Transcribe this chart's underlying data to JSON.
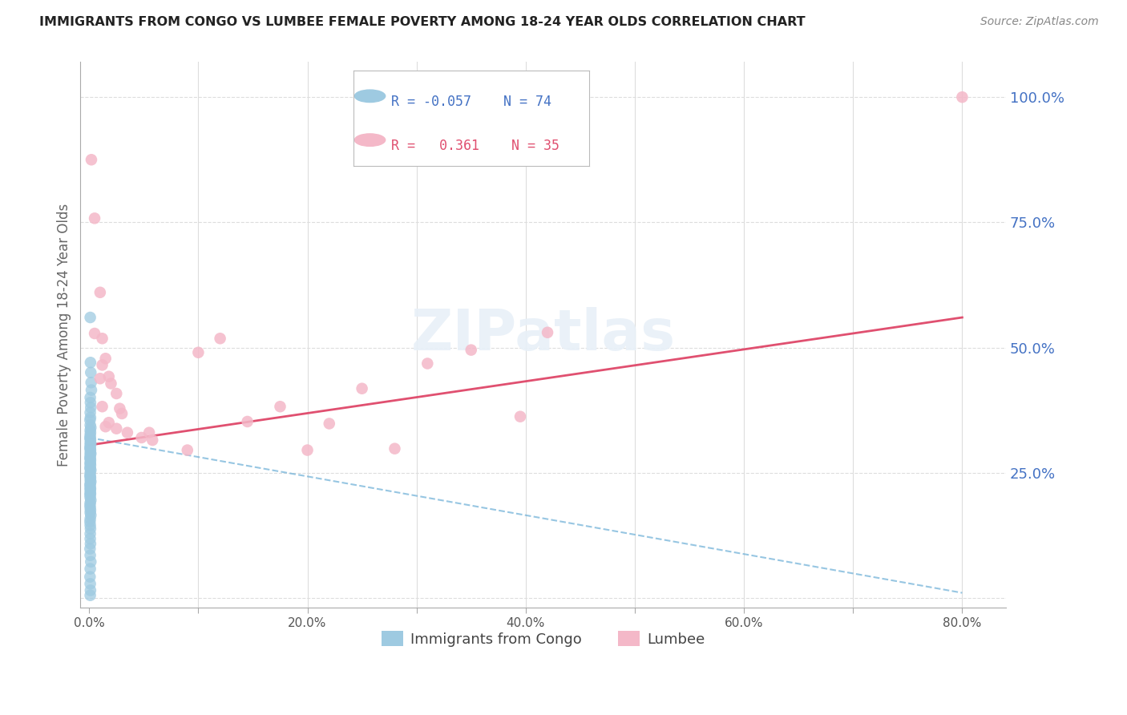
{
  "title": "IMMIGRANTS FROM CONGO VS LUMBEE FEMALE POVERTY AMONG 18-24 YEAR OLDS CORRELATION CHART",
  "source": "Source: ZipAtlas.com",
  "ylabel": "Female Poverty Among 18-24 Year Olds",
  "xlim": [
    -0.008,
    0.84
  ],
  "ylim": [
    -0.02,
    1.07
  ],
  "right_yticks": [
    0.0,
    0.25,
    0.5,
    0.75,
    1.0
  ],
  "right_yticklabels": [
    "",
    "25.0%",
    "50.0%",
    "75.0%",
    "100.0%"
  ],
  "xtick_vals": [
    0.0,
    0.1,
    0.2,
    0.3,
    0.4,
    0.5,
    0.6,
    0.7,
    0.8
  ],
  "xtick_labels": [
    "0.0%",
    "",
    "20.0%",
    "",
    "40.0%",
    "",
    "60.0%",
    "",
    "80.0%"
  ],
  "grid_yticks": [
    0.0,
    0.25,
    0.5,
    0.75,
    1.0
  ],
  "grid_xticks": [
    0.1,
    0.2,
    0.3,
    0.4,
    0.5,
    0.6,
    0.7,
    0.8
  ],
  "grid_color": "#dddddd",
  "background_color": "#ffffff",
  "congo_color": "#9ecae1",
  "lumbee_color": "#f4b8c8",
  "congo_line_color": "#6baed6",
  "lumbee_line_color": "#e05070",
  "legend_R_congo": "-0.057",
  "legend_N_congo": "74",
  "legend_R_lumbee": "0.361",
  "legend_N_lumbee": "35",
  "congo_label": "Immigrants from Congo",
  "lumbee_label": "Lumbee",
  "right_label_color": "#4472c4",
  "title_color": "#222222",
  "source_color": "#888888",
  "congo_points_x": [
    0.001,
    0.0012,
    0.0015,
    0.0018,
    0.002,
    0.001,
    0.0012,
    0.0015,
    0.001,
    0.0012,
    0.0008,
    0.001,
    0.0015,
    0.001,
    0.0012,
    0.001,
    0.0008,
    0.001,
    0.0012,
    0.001,
    0.0015,
    0.001,
    0.0008,
    0.001,
    0.0012,
    0.001,
    0.0015,
    0.001,
    0.0008,
    0.001,
    0.0012,
    0.001,
    0.001,
    0.0012,
    0.0008,
    0.001,
    0.0015,
    0.001,
    0.0008,
    0.001,
    0.0012,
    0.001,
    0.0015,
    0.001,
    0.0008,
    0.001,
    0.0012,
    0.001,
    0.001,
    0.0012,
    0.0008,
    0.001,
    0.0015,
    0.001,
    0.0008,
    0.001,
    0.0012,
    0.001,
    0.0015,
    0.001,
    0.0008,
    0.001,
    0.0012,
    0.001,
    0.001,
    0.0012,
    0.0008,
    0.001,
    0.0015,
    0.001,
    0.0008,
    0.001,
    0.0012,
    0.001
  ],
  "congo_points_y": [
    0.56,
    0.47,
    0.45,
    0.43,
    0.415,
    0.4,
    0.39,
    0.38,
    0.37,
    0.36,
    0.355,
    0.345,
    0.34,
    0.335,
    0.33,
    0.325,
    0.32,
    0.318,
    0.315,
    0.31,
    0.308,
    0.305,
    0.3,
    0.298,
    0.295,
    0.29,
    0.288,
    0.285,
    0.28,
    0.278,
    0.275,
    0.27,
    0.268,
    0.265,
    0.26,
    0.258,
    0.255,
    0.25,
    0.245,
    0.242,
    0.24,
    0.235,
    0.232,
    0.228,
    0.225,
    0.22,
    0.218,
    0.215,
    0.21,
    0.208,
    0.205,
    0.2,
    0.195,
    0.19,
    0.185,
    0.18,
    0.175,
    0.17,
    0.165,
    0.158,
    0.152,
    0.145,
    0.138,
    0.128,
    0.118,
    0.108,
    0.098,
    0.085,
    0.072,
    0.058,
    0.042,
    0.028,
    0.015,
    0.005
  ],
  "lumbee_points_x": [
    0.002,
    0.005,
    0.01,
    0.005,
    0.012,
    0.015,
    0.012,
    0.018,
    0.01,
    0.02,
    0.025,
    0.012,
    0.028,
    0.03,
    0.018,
    0.015,
    0.025,
    0.035,
    0.055,
    0.048,
    0.058,
    0.09,
    0.1,
    0.12,
    0.145,
    0.175,
    0.2,
    0.22,
    0.25,
    0.28,
    0.31,
    0.35,
    0.395,
    0.42,
    0.8
  ],
  "lumbee_points_y": [
    0.875,
    0.758,
    0.61,
    0.528,
    0.518,
    0.478,
    0.465,
    0.442,
    0.438,
    0.428,
    0.408,
    0.382,
    0.378,
    0.368,
    0.35,
    0.342,
    0.338,
    0.33,
    0.33,
    0.32,
    0.315,
    0.295,
    0.49,
    0.518,
    0.352,
    0.382,
    0.295,
    0.348,
    0.418,
    0.298,
    0.468,
    0.495,
    0.362,
    0.53,
    1.0
  ],
  "congo_trend_x": [
    0.0,
    0.8
  ],
  "congo_trend_y": [
    0.32,
    0.01
  ],
  "lumbee_trend_x": [
    0.0,
    0.8
  ],
  "lumbee_trend_y": [
    0.305,
    0.56
  ]
}
